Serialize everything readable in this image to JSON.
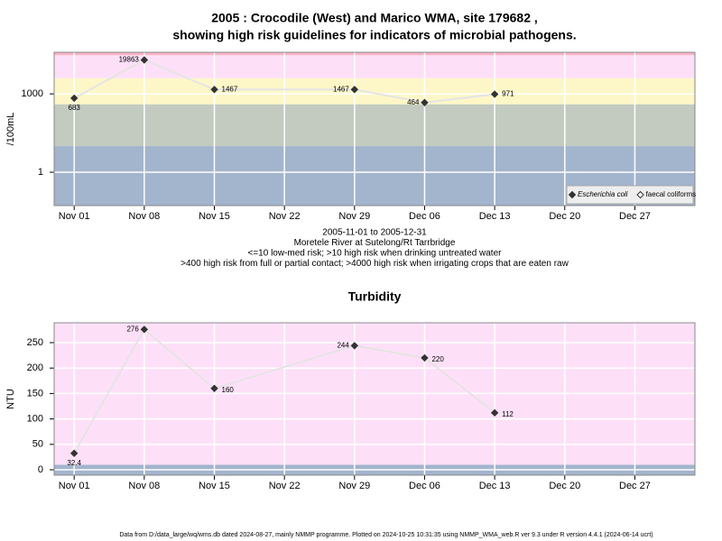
{
  "title": [
    "2005 : Crocodile (West) and Marico WMA, site 179682 ,",
    "showing high risk guidelines for indicators of microbial pathogens."
  ],
  "footer": "Data from D:/data_large/wq/wms.db dated 2024-08-27, mainly NMMP programme. Plotted on 2024-10-25 10:31:35 using NMMP_WMA_web.R ver 9.3 under R version 4.4.1 (2024-06-14 ucrt)",
  "chart_data": [
    {
      "type": "line",
      "ylabel": "/100mL",
      "log_y": true,
      "grid": true,
      "legend": "bottom-right",
      "notes": [
        "2005-11-01 to 2005-12-31",
        "Moretele River at Sutelong/Rt Tarrbridge",
        "<=10 low-med risk; >10 high risk when drinking untreated water",
        ">400 high risk from full or partial contact; >4000 high risk when irrigating crops that are eaten raw"
      ],
      "x": [
        "Nov 01",
        "Nov 08",
        "Nov 15",
        "Nov 29",
        "Dec 06",
        "Dec 13"
      ],
      "xlim": [
        "Oct 30",
        "Jan 02"
      ],
      "xticks": [
        "Nov 01",
        "Nov 08",
        "Nov 15",
        "Nov 22",
        "Nov 29",
        "Dec 06",
        "Dec 13",
        "Dec 20",
        "Dec 27"
      ],
      "ylim": [
        0.053,
        39000
      ],
      "yticks": [
        1,
        1000
      ],
      "bands": [
        {
          "from": 0.053,
          "to": 10,
          "color": "#a3b4cd"
        },
        {
          "from": 10,
          "to": 400,
          "color": "#c3cbc0"
        },
        {
          "from": 400,
          "to": 4000,
          "color": "#fdf7c8"
        },
        {
          "from": 4000,
          "to": 30000,
          "color": "#fde0f8"
        },
        {
          "from": 30000,
          "to": 39000,
          "color": "#f7b4c4"
        }
      ],
      "line_color": "#e4e4e4",
      "series": [
        {
          "name": "Escherichia coli",
          "color": "#333333",
          "marker": "filled",
          "italic": true,
          "values": [
            683,
            19863,
            1467,
            1467,
            464,
            971
          ]
        },
        {
          "name": "faecal coliforms",
          "color": "#333333",
          "marker": "open",
          "italic": false,
          "values": [
            null,
            null,
            null,
            null,
            null,
            null
          ]
        }
      ]
    },
    {
      "type": "line",
      "title": "Turbidity",
      "ylabel": "NTU",
      "log_y": false,
      "grid": true,
      "x": [
        "Nov 01",
        "Nov 08",
        "Nov 15",
        "Nov 29",
        "Dec 06",
        "Dec 13"
      ],
      "xlim": [
        "Oct 30",
        "Jan 02"
      ],
      "xticks": [
        "Nov 01",
        "Nov 08",
        "Nov 15",
        "Nov 22",
        "Nov 29",
        "Dec 06",
        "Dec 13",
        "Dec 20",
        "Dec 27"
      ],
      "ylim": [
        -10.6,
        289
      ],
      "yticks": [
        0,
        50,
        100,
        150,
        200,
        250
      ],
      "bands": [
        {
          "from": -10.6,
          "to": 10,
          "color": "#a3b4cd"
        },
        {
          "from": 10,
          "to": 289,
          "color": "#fde0f8"
        }
      ],
      "line_color": "#e4e4e4",
      "series": [
        {
          "name": "Turbidity",
          "color": "#333333",
          "marker": "filled",
          "values": [
            32.4,
            276,
            160,
            244,
            220,
            112
          ]
        }
      ]
    }
  ]
}
